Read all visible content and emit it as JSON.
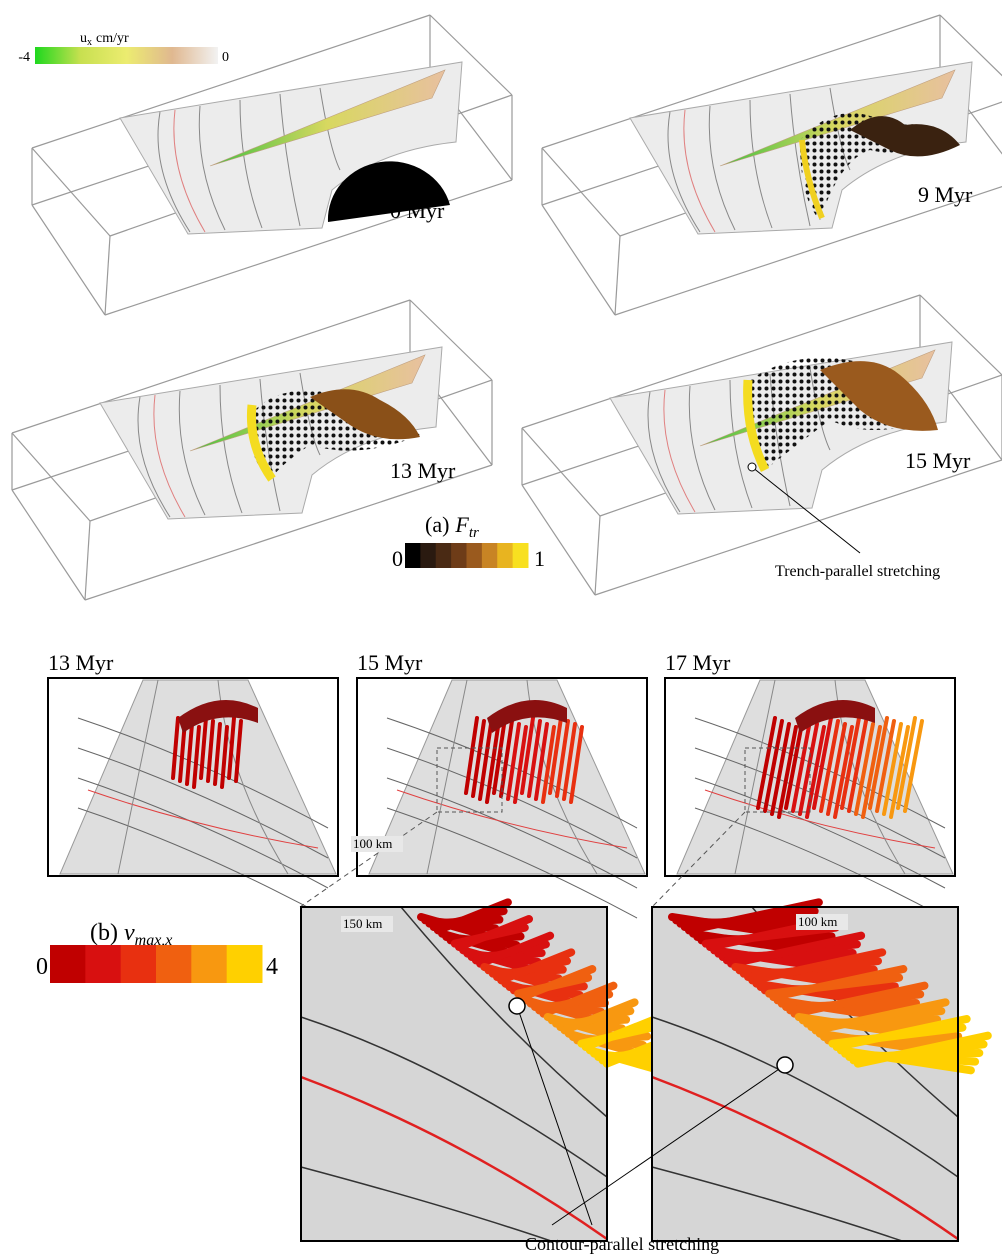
{
  "panel_a": {
    "label": "(a)",
    "ux_colorbar": {
      "symbol": "u",
      "subscript": "x",
      "unit": "cm/yr",
      "min": -4,
      "max": 0,
      "colors": [
        "#1ed81e",
        "#c8e050",
        "#ecec70",
        "#e0b890",
        "#f2f2f2"
      ]
    },
    "snapshots": [
      "0 Myr",
      "9 Myr",
      "13 Myr",
      "15 Myr"
    ],
    "ftr_colorbar": {
      "symbol": "F",
      "subscript": "tr",
      "min": 0,
      "max": 1,
      "colors": [
        "#000000",
        "#2a1a10",
        "#4a2a14",
        "#6e3c18",
        "#9a5a1e",
        "#c88424",
        "#e8b420",
        "#f8e020"
      ]
    },
    "annotation": "Trench-parallel stretching"
  },
  "panel_b": {
    "label": "(b)",
    "snapshots": [
      "13 Myr",
      "15 Myr",
      "17 Myr"
    ],
    "vmax_colorbar": {
      "symbol": "v",
      "subscript": "max,x",
      "min": 0,
      "max": 4,
      "colors": [
        "#c00000",
        "#d81010",
        "#e83010",
        "#f06010",
        "#f89810",
        "#ffd000"
      ]
    },
    "contour_labels": [
      "150 km",
      "100 km",
      "100 km"
    ],
    "annotation": "Contour-parallel stretching"
  }
}
